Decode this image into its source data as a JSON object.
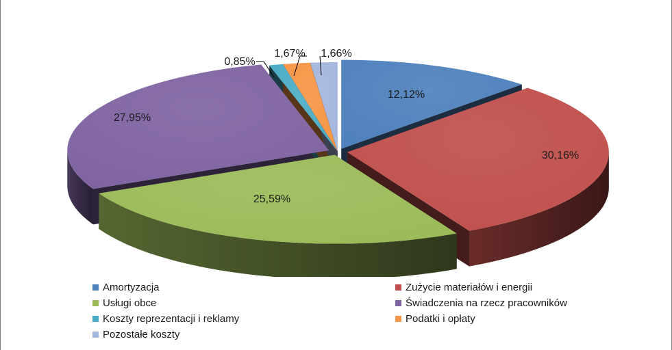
{
  "chart_data": {
    "type": "pie",
    "title": "",
    "legend_position": "bottom",
    "series": [
      {
        "name": "Amortyzacja",
        "value": 12.12,
        "label": "12,12%",
        "color": "#4f81bd"
      },
      {
        "name": "Zużycie materiałów i energii",
        "value": 30.16,
        "label": "30,16%",
        "color": "#c0504d"
      },
      {
        "name": "Usługi obce",
        "value": 25.59,
        "label": "25,59%",
        "color": "#9bbb59"
      },
      {
        "name": "Świadczenia na rzecz pracowników",
        "value": 27.95,
        "label": "27,95%",
        "color": "#8064a2"
      },
      {
        "name": "Koszty reprezentacji i reklamy",
        "value": 0.85,
        "label": "0,85%",
        "color": "#4bacc6"
      },
      {
        "name": "Podatki i opłaty",
        "value": 1.67,
        "label": "1,67%",
        "color": "#f79646"
      },
      {
        "name": "Pozostałe koszty",
        "value": 1.66,
        "label": "1,66%",
        "color": "#a5b6dd"
      }
    ]
  }
}
